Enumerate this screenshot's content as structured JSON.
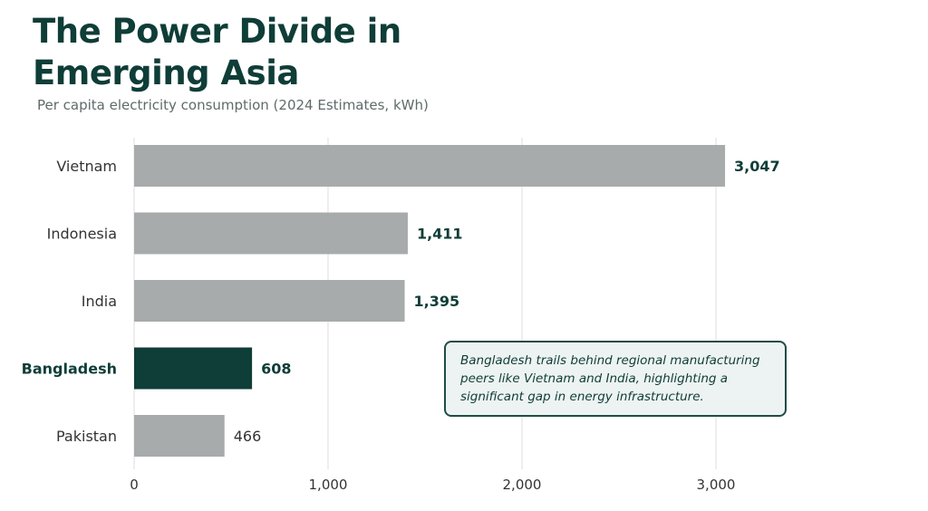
{
  "title": "The Power Divide in Emerging Asia",
  "subtitle": "Per capita electricity consumption (2024 Estimates, kWh)",
  "callout": "Bangladesh trails behind regional manufacturing peers like Vietnam and India, highlighting a significant gap in energy infrastructure.",
  "colors": {
    "bar_default": "#a7abac",
    "bar_highlight": "#0f3d37",
    "text_dark": "#0f3d37",
    "grid": "#dcdcdc"
  },
  "chart_data": {
    "type": "bar",
    "orientation": "horizontal",
    "categories": [
      "Vietnam",
      "Indonesia",
      "India",
      "Bangladesh",
      "Pakistan"
    ],
    "values": [
      3047,
      1411,
      1395,
      608,
      466
    ],
    "value_labels": [
      "3,047",
      "1,411",
      "1,395",
      "608",
      "466"
    ],
    "highlight": "Bangladesh",
    "xlim": [
      0,
      3050
    ],
    "xticks": [
      0,
      1000,
      2000,
      3000
    ],
    "xtick_labels": [
      "0",
      "1,000",
      "2,000",
      "3,000"
    ],
    "grid": true,
    "legend": false
  }
}
